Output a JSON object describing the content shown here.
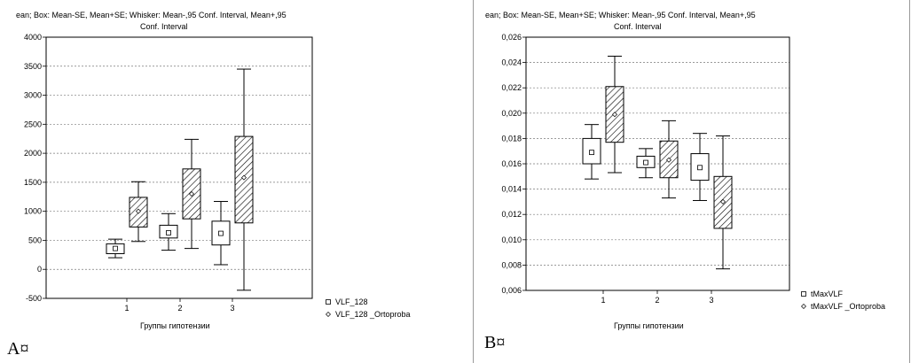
{
  "chart_data": [
    {
      "type": "box",
      "panel_label": "A¤",
      "title_line1": "ean;  Box: Mean-SE, Mean+SE;  Whisker: Mean-,95 Conf. Interval, Mean+,95",
      "title_line2": "Conf. Interval",
      "xlabel": "Группы гипотензии",
      "ylabel": "",
      "categories": [
        "1",
        "2",
        "3"
      ],
      "ylim": [
        -500,
        4000
      ],
      "yticks": [
        "4000",
        "3500",
        "3000",
        "2500",
        "2000",
        "1500",
        "1000",
        "500",
        "0",
        "-500"
      ],
      "grid": true,
      "legend_position": "right",
      "series": [
        {
          "name": "VLF_128",
          "marker": "square",
          "hatched": false,
          "values": [
            {
              "mean": 360,
              "box_low": 270,
              "box_high": 440,
              "whisker_low": 200,
              "whisker_high": 520
            },
            {
              "mean": 630,
              "box_low": 540,
              "box_high": 760,
              "whisker_low": 330,
              "whisker_high": 960
            },
            {
              "mean": 620,
              "box_low": 420,
              "box_high": 830,
              "whisker_low": 80,
              "whisker_high": 1170
            }
          ]
        },
        {
          "name": "VLF_128 _Ortoproba",
          "marker": "diamond",
          "hatched": true,
          "values": [
            {
              "mean": 1000,
              "box_low": 730,
              "box_high": 1240,
              "whisker_low": 480,
              "whisker_high": 1510
            },
            {
              "mean": 1300,
              "box_low": 870,
              "box_high": 1730,
              "whisker_low": 360,
              "whisker_high": 2240
            },
            {
              "mean": 1580,
              "box_low": 800,
              "box_high": 2290,
              "whisker_low": -360,
              "whisker_high": 3450
            }
          ]
        }
      ]
    },
    {
      "type": "box",
      "panel_label": "B¤",
      "title_line1": "ean;  Box: Mean-SE, Mean+SE;  Whisker: Mean-,95 Conf. Interval, Mean+,95",
      "title_line2": "Conf. Interval",
      "xlabel": "Группы гипотензии",
      "ylabel": "",
      "categories": [
        "1",
        "2",
        "3"
      ],
      "ylim": [
        0.006,
        0.026
      ],
      "yticks": [
        "0,026",
        "0,024",
        "0,022",
        "0,020",
        "0,018",
        "0,016",
        "0,014",
        "0,012",
        "0,010",
        "0,008",
        "0,006"
      ],
      "grid": true,
      "legend_position": "right",
      "series": [
        {
          "name": "tMaxVLF",
          "marker": "square",
          "hatched": false,
          "values": [
            {
              "mean": 0.0169,
              "box_low": 0.016,
              "box_high": 0.018,
              "whisker_low": 0.0148,
              "whisker_high": 0.0191
            },
            {
              "mean": 0.0161,
              "box_low": 0.0157,
              "box_high": 0.0166,
              "whisker_low": 0.0149,
              "whisker_high": 0.0172
            },
            {
              "mean": 0.0157,
              "box_low": 0.0147,
              "box_high": 0.0168,
              "whisker_low": 0.0131,
              "whisker_high": 0.0184
            }
          ]
        },
        {
          "name": "tMaxVLF _Ortoproba",
          "marker": "diamond",
          "hatched": true,
          "values": [
            {
              "mean": 0.0199,
              "box_low": 0.0177,
              "box_high": 0.0221,
              "whisker_low": 0.0153,
              "whisker_high": 0.0245
            },
            {
              "mean": 0.0163,
              "box_low": 0.0149,
              "box_high": 0.0178,
              "whisker_low": 0.0133,
              "whisker_high": 0.0194
            },
            {
              "mean": 0.013,
              "box_low": 0.0109,
              "box_high": 0.015,
              "whisker_low": 0.0077,
              "whisker_high": 0.0182
            }
          ]
        }
      ]
    }
  ]
}
